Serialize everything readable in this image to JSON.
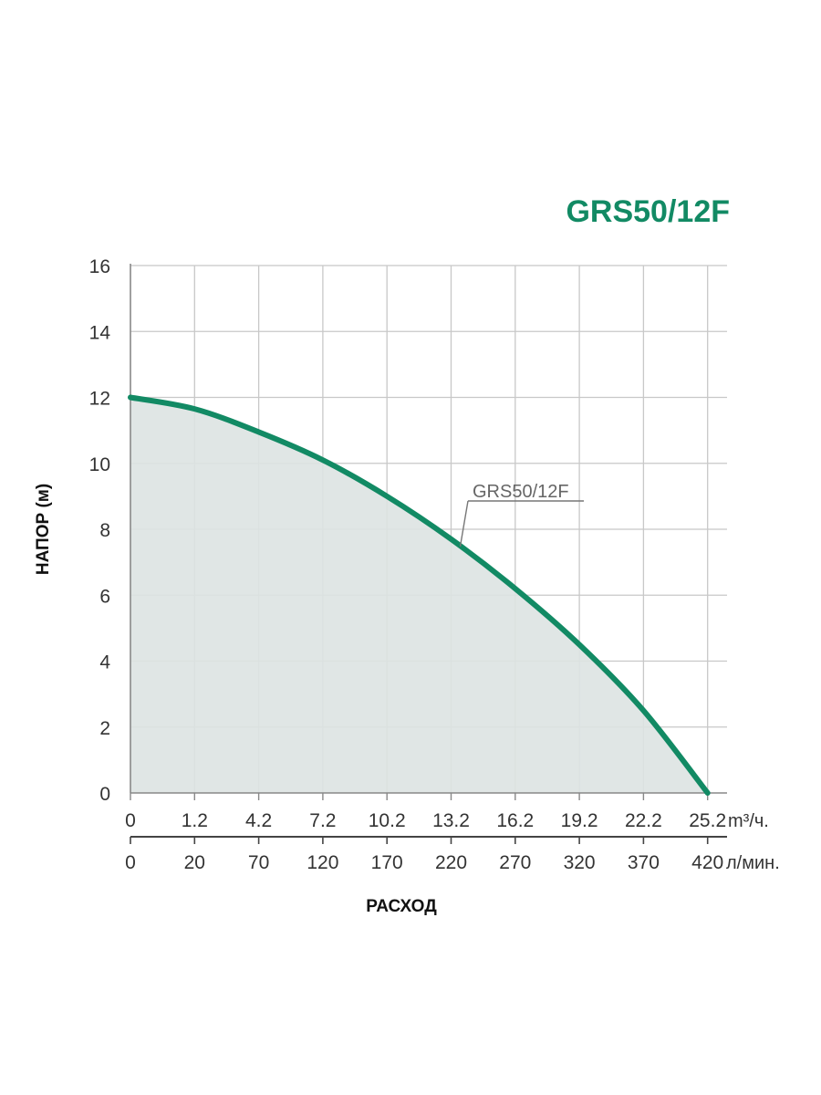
{
  "chart_data": {
    "type": "area",
    "title": "GRS50/12F",
    "ylabel": "НАПОР (м)",
    "xlabel": "РАСХОД",
    "ylim": [
      0,
      16
    ],
    "yticks": [
      "0",
      "2",
      "4",
      "6",
      "8",
      "10",
      "12",
      "14",
      "16"
    ],
    "x_primary": {
      "unit": "m³/ч.",
      "ticks": [
        "0",
        "1.2",
        "4.2",
        "7.2",
        "10.2",
        "13.2",
        "16.2",
        "19.2",
        "22.2",
        "25.2"
      ]
    },
    "x_secondary": {
      "unit": "л/мин.",
      "ticks": [
        "0",
        "20",
        "70",
        "120",
        "170",
        "220",
        "270",
        "320",
        "370",
        "420"
      ]
    },
    "grid": true,
    "series": [
      {
        "name": "GRS50/12F",
        "color": "#128a64",
        "fill": "#dde3e2",
        "x": [
          0,
          20,
          70,
          120,
          170,
          220,
          270,
          320,
          370,
          420
        ],
        "y": [
          12.0,
          11.65,
          10.95,
          10.1,
          9.0,
          7.7,
          6.2,
          4.5,
          2.5,
          0.0
        ]
      }
    ]
  }
}
